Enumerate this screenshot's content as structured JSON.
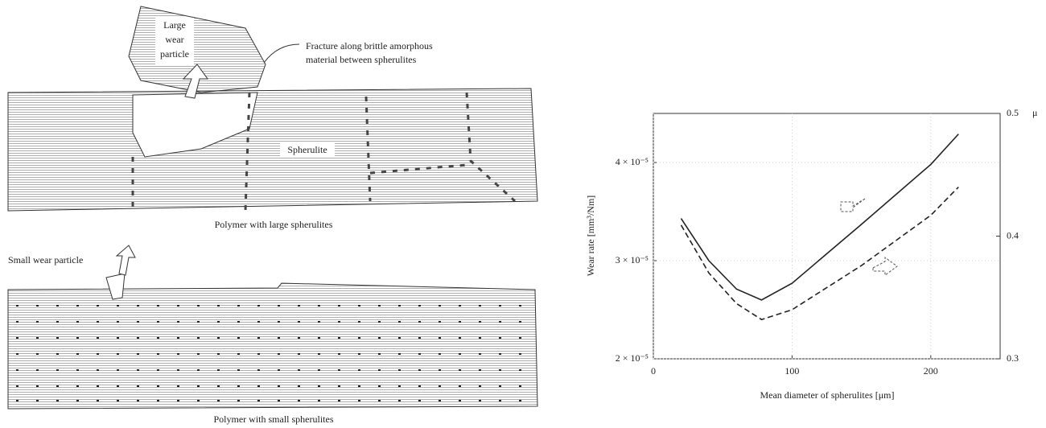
{
  "diagram": {
    "large_wear_particle": [
      "Large",
      "wear",
      "particle"
    ],
    "fracture": [
      "Fracture along brittle amorphous",
      "material between spherulites"
    ],
    "spherulite": "Spherulite",
    "large_caption": "Polymer with large spherulites",
    "small_wear_particle": "Small wear particle",
    "small_caption": "Polymer with small spherulites"
  },
  "chart_data": {
    "type": "line",
    "x_label": "Mean diameter of spherulites [μm]",
    "y_label": "Wear rate [mm³/Nm]",
    "y2_label": "μ",
    "x": [
      20,
      40,
      60,
      78,
      100,
      150,
      200,
      220
    ],
    "xlim": [
      0,
      250
    ],
    "xticks": [
      0,
      100,
      200
    ],
    "ylim": [
      2e-05,
      4.5e-05
    ],
    "yticks": [
      {
        "value": 2e-05,
        "label": "2 × 10⁻⁵"
      },
      {
        "value": 3e-05,
        "label": "3 × 10⁻⁵"
      },
      {
        "value": 4e-05,
        "label": "4 × 10⁻⁵"
      }
    ],
    "y2lim": [
      0.3,
      0.5
    ],
    "y2ticks": [
      0.3,
      0.4,
      0.5
    ],
    "grid": true,
    "series": [
      {
        "color": "#222222",
        "dash": false,
        "values": [
          3.43e-05,
          3e-05,
          2.71e-05,
          2.6e-05,
          2.77e-05,
          3.37e-05,
          3.98e-05,
          4.29e-05
        ]
      },
      {
        "color": "#222222",
        "dash": true,
        "axis": "y2",
        "values": [
          0.409,
          0.37,
          0.345,
          0.332,
          0.34,
          0.376,
          0.417,
          0.44
        ]
      }
    ]
  }
}
